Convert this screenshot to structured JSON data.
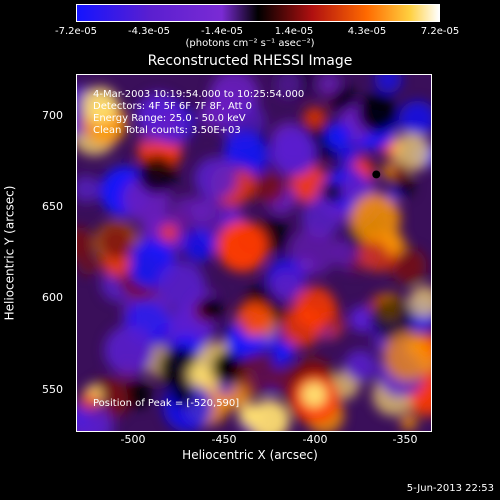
{
  "colorbar": {
    "ticks": [
      "-7.2e-05",
      "-4.3e-05",
      "-1.4e-05",
      "1.4e-05",
      "4.3e-05",
      "7.2e-05"
    ],
    "unit_html": "(photons cm⁻² s⁻¹ asec⁻²)"
  },
  "title": "Reconstructed RHESSI Image",
  "annotations": {
    "time": "4-Mar-2003 10:19:54.000 to 10:25:54.000",
    "detectors": "Detectors: 4F 5F 6F 7F 8F, Att 0",
    "energy": "Energy Range: 25.0 - 50.0 keV",
    "clean": "Clean    Total counts: 3.50E+03",
    "peak": "Position of Peak = [-520,590]"
  },
  "axes": {
    "x_label": "Heliocentric X (arcsec)",
    "y_label": "Heliocentric Y (arcsec)",
    "x_ticks": [
      "-500",
      "-450",
      "-400",
      "-350"
    ],
    "y_ticks": [
      "700",
      "650",
      "600",
      "550"
    ]
  },
  "footer": {
    "date": "5-Jun-2013 22:53"
  },
  "colors": {
    "colormap": [
      "#1414ff",
      "#5a1fd0",
      "#6a1fc0",
      "#000000",
      "#7a0f10",
      "#ff3b00",
      "#ff9a00",
      "#ffe070"
    ]
  }
}
